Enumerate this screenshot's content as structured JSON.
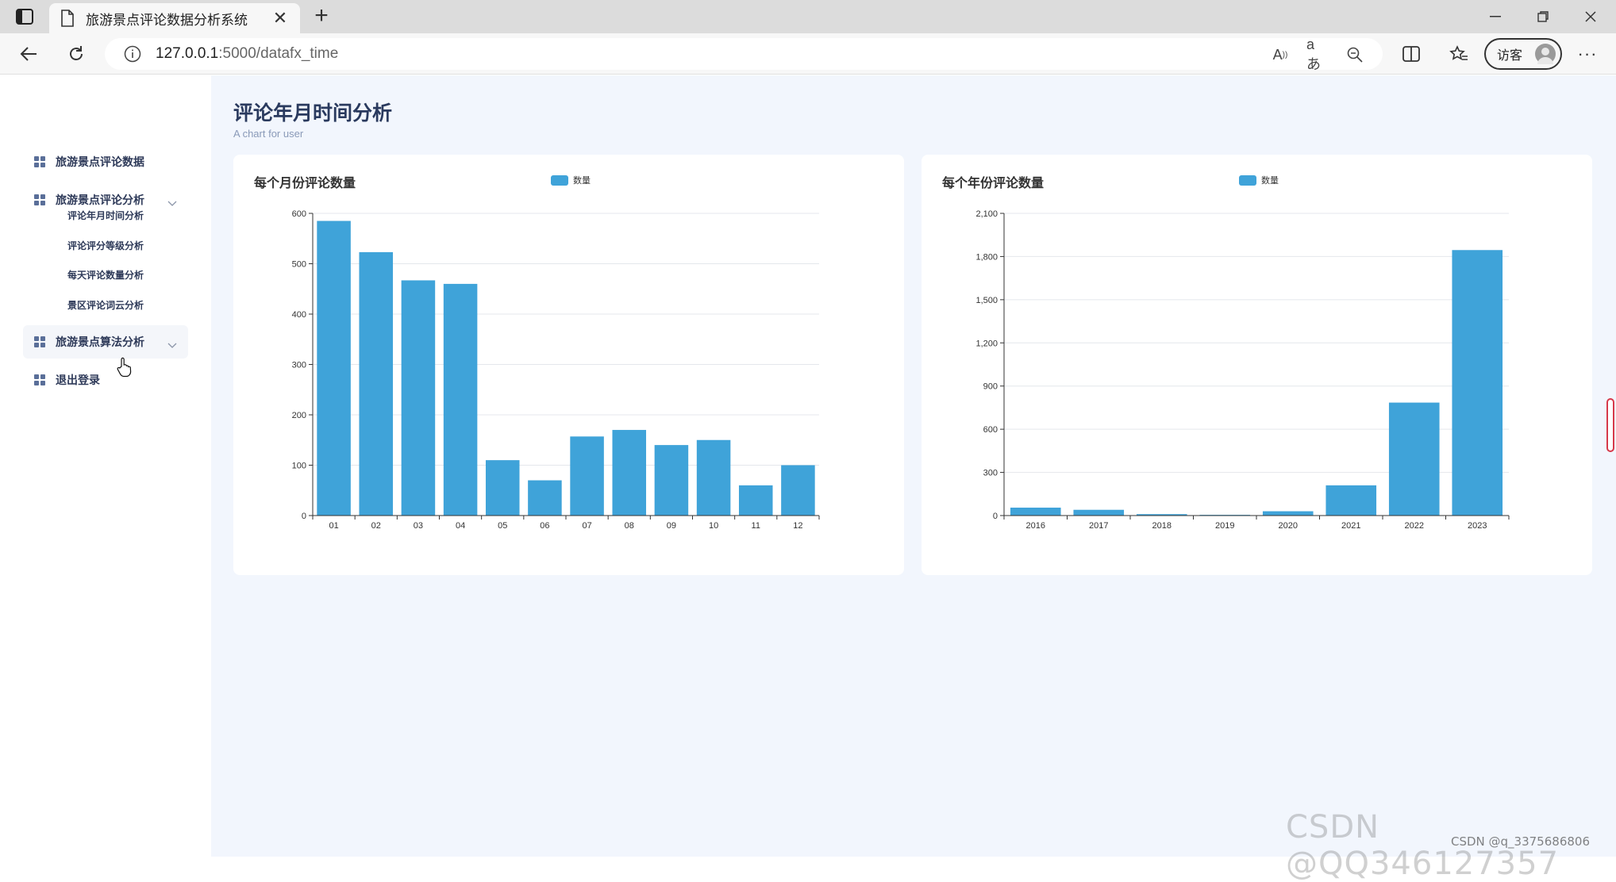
{
  "browser": {
    "tab_title": "旅游景点评论数据分析系统",
    "url_host": "127.0.0.1",
    "url_path": ":5000/datafx_time",
    "profile_label": "访客",
    "more_label": "···"
  },
  "sidebar": {
    "items": [
      {
        "label": "旅游景点评论数据"
      },
      {
        "label": "旅游景点评论分析"
      },
      {
        "label": "旅游景点算法分析"
      },
      {
        "label": "退出登录"
      }
    ],
    "sub_items": [
      {
        "label": "评论年月时间分析"
      },
      {
        "label": "评论评分等级分析"
      },
      {
        "label": "每天评论数量分析"
      },
      {
        "label": "景区评论词云分析"
      }
    ]
  },
  "page": {
    "title": "评论年月时间分析",
    "subtitle": "A chart for user"
  },
  "chart_data": [
    {
      "type": "bar",
      "title": "每个月份评论数量",
      "categories": [
        "01",
        "02",
        "03",
        "04",
        "05",
        "06",
        "07",
        "08",
        "09",
        "10",
        "11",
        "12"
      ],
      "series": [
        {
          "name": "数量",
          "values": [
            585,
            523,
            467,
            460,
            110,
            70,
            157,
            170,
            140,
            150,
            60,
            100
          ]
        }
      ],
      "ylim": [
        0,
        600
      ],
      "yticks": [
        0,
        100,
        200,
        300,
        400,
        500,
        600
      ],
      "ytick_labels": [
        "0",
        "100",
        "200",
        "300",
        "400",
        "500",
        "600"
      ],
      "grid": true,
      "legend": "top-center",
      "color": "#3fa3d9"
    },
    {
      "type": "bar",
      "title": "每个年份评论数量",
      "categories": [
        "2016",
        "2017",
        "2018",
        "2019",
        "2020",
        "2021",
        "2022",
        "2023"
      ],
      "series": [
        {
          "name": "数量",
          "values": [
            55,
            40,
            10,
            5,
            30,
            210,
            785,
            1845
          ]
        }
      ],
      "ylim": [
        0,
        2100
      ],
      "yticks": [
        0,
        300,
        600,
        900,
        1200,
        1500,
        1800,
        2100
      ],
      "ytick_labels": [
        "0",
        "300",
        "600",
        "900",
        "1,200",
        "1,500",
        "1,800",
        "2,100"
      ],
      "grid": true,
      "legend": "top-center",
      "color": "#3fa3d9"
    }
  ],
  "watermark": {
    "text": "CSDN @QQ346127357",
    "small_text": "CSDN @q_3375686806"
  }
}
